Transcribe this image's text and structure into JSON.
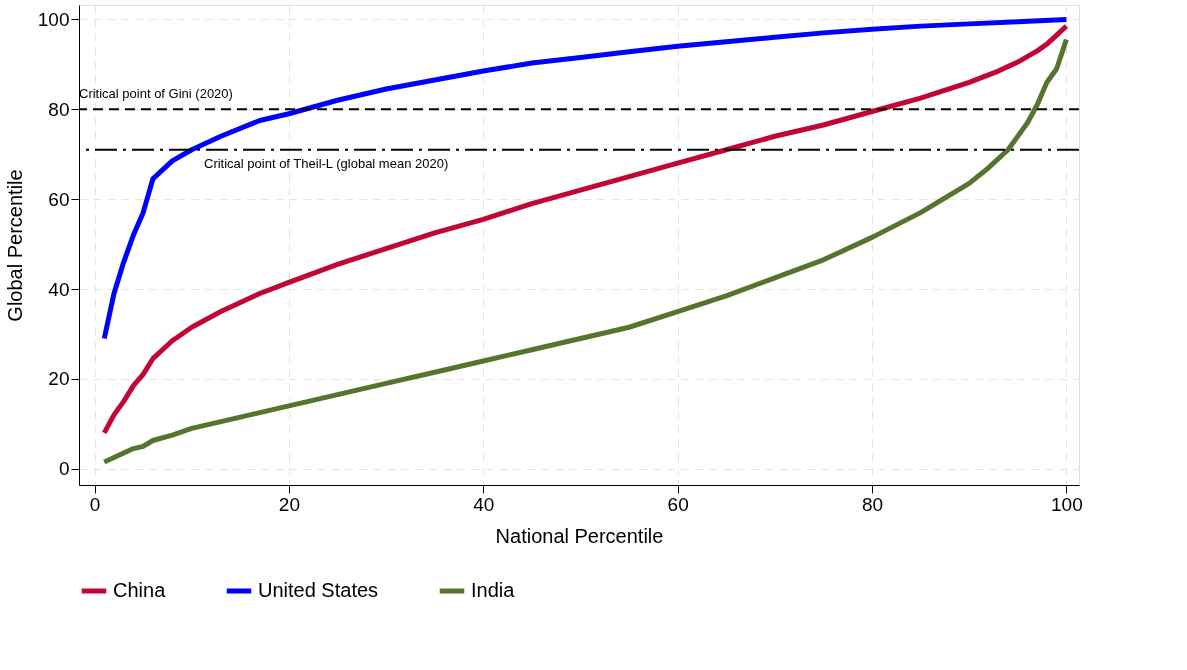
{
  "chart_data": {
    "type": "line",
    "xlabel": "National Percentile",
    "ylabel": "Global Percentile",
    "xlim": [
      -1.6,
      101.3
    ],
    "ylim": [
      -3.6,
      103.2
    ],
    "xticks": [
      0,
      20,
      40,
      60,
      80,
      100
    ],
    "yticks": [
      0,
      20,
      40,
      60,
      80,
      100
    ],
    "grid": true,
    "legend": "bottom",
    "line_style": "solid",
    "marker": "none",
    "ref_lines": [
      {
        "axis": "y",
        "value": 80,
        "label": "Critical point of Gini (2020)",
        "color": "#000000",
        "line_style": "dashed"
      },
      {
        "axis": "y",
        "value": 71,
        "label": "Critical point of Theil-L (global mean 2020)",
        "color": "#000000",
        "line_style": "dashdot"
      }
    ],
    "series": [
      {
        "name": "China",
        "color": "#c10534",
        "x": [
          1,
          2,
          3,
          4,
          5,
          6,
          8,
          10,
          13,
          17,
          20,
          25,
          30,
          35,
          40,
          45,
          50,
          55,
          60,
          65,
          70,
          75,
          80,
          85,
          90,
          93,
          95,
          97,
          98,
          99,
          100
        ],
        "values": [
          8,
          12,
          15,
          18.5,
          21,
          24.5,
          28.5,
          31.5,
          35,
          39,
          41.5,
          45.5,
          49,
          52.5,
          55.5,
          59,
          62,
          65,
          68,
          71,
          74,
          76.5,
          79.5,
          82.5,
          86,
          88.5,
          90.5,
          93,
          94.5,
          96.5,
          98.5
        ]
      },
      {
        "name": "United States",
        "color": "#0000ff",
        "x": [
          1,
          2,
          3,
          4,
          5,
          6,
          8,
          10,
          13,
          17,
          20,
          25,
          30,
          35,
          40,
          45,
          50,
          55,
          60,
          65,
          70,
          75,
          80,
          85,
          90,
          95,
          100
        ],
        "values": [
          29,
          39,
          46,
          52,
          57,
          64.5,
          68.5,
          71,
          74,
          77.5,
          79,
          82,
          84.5,
          86.5,
          88.5,
          90.3,
          91.5,
          92.8,
          94,
          95,
          96,
          97,
          97.8,
          98.5,
          99,
          99.5,
          100
        ]
      },
      {
        "name": "India",
        "color": "#55752f",
        "x": [
          1,
          2,
          3,
          4,
          5,
          6,
          8,
          10,
          13,
          17,
          20,
          25,
          30,
          35,
          40,
          45,
          50,
          55,
          60,
          65,
          70,
          75,
          80,
          85,
          90,
          92,
          94,
          96,
          97,
          98,
          99,
          100
        ],
        "values": [
          1.5,
          2.5,
          3.5,
          4.5,
          5,
          6.3,
          7.5,
          9,
          10.5,
          12.5,
          14,
          16.5,
          19,
          21.5,
          24,
          26.5,
          29,
          31.5,
          35,
          38.5,
          42.5,
          46.5,
          51.5,
          57,
          63.5,
          67,
          71,
          77,
          81,
          86,
          89,
          95.5
        ]
      }
    ]
  }
}
